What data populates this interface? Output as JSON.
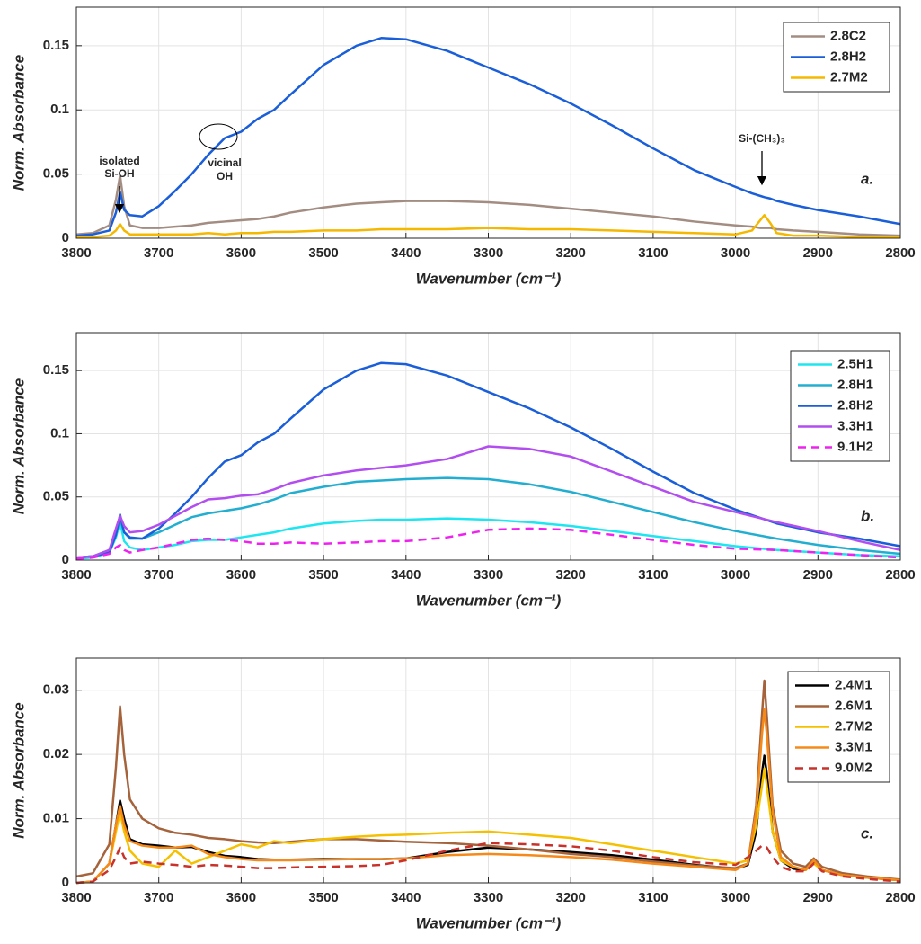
{
  "chart_data": [
    {
      "type": "line",
      "xlabel": "Wavenumber (cm⁻¹)",
      "ylabel": "Norm. Absorbance",
      "x": [
        3800,
        3780,
        3760,
        3752,
        3747,
        3742,
        3735,
        3720,
        3700,
        3680,
        3660,
        3640,
        3620,
        3600,
        3580,
        3560,
        3540,
        3500,
        3460,
        3430,
        3400,
        3350,
        3300,
        3250,
        3200,
        3150,
        3100,
        3050,
        3000,
        2980,
        2970,
        2965,
        2958,
        2950,
        2930,
        2900,
        2850,
        2800
      ],
      "xlim": [
        3800,
        2800
      ],
      "xticks": [
        3800,
        3700,
        3600,
        3500,
        3400,
        3300,
        3200,
        3100,
        3000,
        2900,
        2800
      ],
      "ylim": [
        0,
        0.18
      ],
      "yticks": [
        0,
        0.05,
        0.1,
        0.15
      ],
      "grid": true,
      "legend": "upper right",
      "series": [
        {
          "name": "2.8C2",
          "color": "#a38d83",
          "values": [
            0.003,
            0.004,
            0.01,
            0.03,
            0.049,
            0.025,
            0.01,
            0.008,
            0.008,
            0.009,
            0.01,
            0.012,
            0.013,
            0.014,
            0.015,
            0.017,
            0.02,
            0.024,
            0.027,
            0.028,
            0.029,
            0.029,
            0.028,
            0.026,
            0.023,
            0.02,
            0.017,
            0.013,
            0.01,
            0.009,
            0.008,
            0.008,
            0.008,
            0.007,
            0.006,
            0.005,
            0.003,
            0.002
          ]
        },
        {
          "name": "2.8H2",
          "color": "#1a5fd9",
          "values": [
            0.002,
            0.003,
            0.006,
            0.02,
            0.036,
            0.022,
            0.018,
            0.017,
            0.025,
            0.037,
            0.05,
            0.065,
            0.078,
            0.083,
            0.093,
            0.1,
            0.112,
            0.135,
            0.15,
            0.156,
            0.155,
            0.146,
            0.133,
            0.12,
            0.105,
            0.088,
            0.07,
            0.053,
            0.04,
            0.035,
            0.033,
            0.032,
            0.031,
            0.029,
            0.026,
            0.022,
            0.017,
            0.011
          ]
        },
        {
          "name": "2.7M2",
          "color": "#f5b800",
          "values": [
            0.001,
            0.001,
            0.002,
            0.006,
            0.011,
            0.006,
            0.003,
            0.003,
            0.003,
            0.003,
            0.003,
            0.004,
            0.003,
            0.004,
            0.004,
            0.005,
            0.005,
            0.006,
            0.006,
            0.007,
            0.007,
            0.007,
            0.008,
            0.007,
            0.007,
            0.006,
            0.005,
            0.004,
            0.003,
            0.006,
            0.014,
            0.018,
            0.012,
            0.004,
            0.002,
            0.002,
            0.001,
            0.001
          ]
        }
      ],
      "annotations": [
        "isolated",
        "Si-OH",
        "vicinal",
        "OH",
        "Si-(CH₃)₃",
        "a."
      ]
    },
    {
      "type": "line",
      "xlabel": "Wavenumber (cm⁻¹)",
      "ylabel": "Norm. Absorbance",
      "x": [
        3800,
        3780,
        3760,
        3752,
        3747,
        3742,
        3735,
        3720,
        3700,
        3680,
        3660,
        3640,
        3620,
        3600,
        3580,
        3560,
        3540,
        3500,
        3460,
        3430,
        3400,
        3350,
        3300,
        3250,
        3200,
        3150,
        3100,
        3050,
        3000,
        2950,
        2900,
        2850,
        2800
      ],
      "xlim": [
        3800,
        2800
      ],
      "xticks": [
        3800,
        3700,
        3600,
        3500,
        3400,
        3300,
        3200,
        3100,
        3000,
        2900,
        2800
      ],
      "ylim": [
        0,
        0.18
      ],
      "yticks": [
        0,
        0.05,
        0.1,
        0.15
      ],
      "grid": true,
      "legend": "upper right",
      "series": [
        {
          "name": "2.5H1",
          "color": "#1ee6f0",
          "values": [
            0.001,
            0.002,
            0.006,
            0.018,
            0.03,
            0.015,
            0.01,
            0.008,
            0.01,
            0.012,
            0.015,
            0.016,
            0.016,
            0.018,
            0.02,
            0.022,
            0.025,
            0.029,
            0.031,
            0.032,
            0.032,
            0.033,
            0.032,
            0.03,
            0.027,
            0.023,
            0.019,
            0.015,
            0.011,
            0.008,
            0.006,
            0.004,
            0.003
          ]
        },
        {
          "name": "2.8H1",
          "color": "#22aed0",
          "values": [
            0.002,
            0.003,
            0.008,
            0.02,
            0.032,
            0.022,
            0.017,
            0.017,
            0.022,
            0.028,
            0.034,
            0.037,
            0.039,
            0.041,
            0.044,
            0.048,
            0.053,
            0.058,
            0.062,
            0.063,
            0.064,
            0.065,
            0.064,
            0.06,
            0.054,
            0.046,
            0.038,
            0.03,
            0.023,
            0.017,
            0.012,
            0.008,
            0.005
          ]
        },
        {
          "name": "2.8H2",
          "color": "#1a5fd9",
          "values": [
            0.002,
            0.003,
            0.006,
            0.02,
            0.036,
            0.022,
            0.018,
            0.017,
            0.025,
            0.037,
            0.05,
            0.065,
            0.078,
            0.083,
            0.093,
            0.1,
            0.112,
            0.135,
            0.15,
            0.156,
            0.155,
            0.146,
            0.133,
            0.12,
            0.105,
            0.088,
            0.07,
            0.053,
            0.04,
            0.029,
            0.022,
            0.017,
            0.011
          ]
        },
        {
          "name": "3.3H1",
          "color": "#b24ef0",
          "values": [
            0.002,
            0.003,
            0.008,
            0.025,
            0.035,
            0.027,
            0.022,
            0.023,
            0.028,
            0.035,
            0.042,
            0.048,
            0.049,
            0.051,
            0.052,
            0.056,
            0.061,
            0.067,
            0.071,
            0.073,
            0.075,
            0.08,
            0.09,
            0.088,
            0.082,
            0.07,
            0.058,
            0.046,
            0.038,
            0.03,
            0.023,
            0.015,
            0.008
          ]
        },
        {
          "name": "9.1H2",
          "color": "#ee22ee",
          "linestyle": "dashed",
          "values": [
            0.001,
            0.002,
            0.005,
            0.01,
            0.012,
            0.008,
            0.006,
            0.008,
            0.01,
            0.013,
            0.016,
            0.017,
            0.016,
            0.015,
            0.013,
            0.013,
            0.014,
            0.013,
            0.014,
            0.015,
            0.015,
            0.018,
            0.024,
            0.025,
            0.024,
            0.02,
            0.016,
            0.012,
            0.009,
            0.008,
            0.006,
            0.004,
            0.002
          ]
        }
      ],
      "annotations": [
        "b."
      ]
    },
    {
      "type": "line",
      "xlabel": "Wavenumber (cm⁻¹)",
      "ylabel": "Norm. Absorbance",
      "x": [
        3800,
        3780,
        3760,
        3752,
        3747,
        3742,
        3735,
        3720,
        3700,
        3680,
        3660,
        3640,
        3620,
        3600,
        3580,
        3560,
        3540,
        3500,
        3460,
        3430,
        3400,
        3350,
        3300,
        3250,
        3200,
        3150,
        3100,
        3050,
        3000,
        2985,
        2975,
        2968,
        2965,
        2962,
        2955,
        2945,
        2930,
        2915,
        2905,
        2895,
        2870,
        2840,
        2800
      ],
      "xlim": [
        3800,
        2800
      ],
      "xticks": [
        3800,
        3700,
        3600,
        3500,
        3400,
        3300,
        3200,
        3100,
        3000,
        2900,
        2800
      ],
      "ylim": [
        0,
        0.035
      ],
      "yticks": [
        0,
        0.01,
        0.02,
        0.03
      ],
      "grid": true,
      "legend": "upper right",
      "series": [
        {
          "name": "2.4M1",
          "color": "#000000",
          "values": [
            0,
            0.0002,
            0.003,
            0.009,
            0.0128,
            0.01,
            0.0068,
            0.006,
            0.0058,
            0.0055,
            0.0056,
            0.0048,
            0.0042,
            0.004,
            0.0037,
            0.0036,
            0.0036,
            0.0037,
            0.0037,
            0.0037,
            0.0038,
            0.0048,
            0.0055,
            0.0052,
            0.0048,
            0.0043,
            0.0036,
            0.0028,
            0.0022,
            0.0028,
            0.008,
            0.017,
            0.0198,
            0.017,
            0.008,
            0.0035,
            0.0022,
            0.002,
            0.0033,
            0.002,
            0.0012,
            0.0008,
            0.0004
          ]
        },
        {
          "name": "2.6M1",
          "color": "#a5633c",
          "values": [
            0.001,
            0.0015,
            0.006,
            0.018,
            0.0275,
            0.02,
            0.013,
            0.01,
            0.0085,
            0.0078,
            0.0075,
            0.007,
            0.0068,
            0.0065,
            0.0063,
            0.0062,
            0.0064,
            0.0068,
            0.0068,
            0.0066,
            0.0064,
            0.0062,
            0.0058,
            0.0052,
            0.0045,
            0.004,
            0.0033,
            0.0027,
            0.0023,
            0.003,
            0.012,
            0.026,
            0.0315,
            0.026,
            0.012,
            0.005,
            0.003,
            0.0025,
            0.0038,
            0.0025,
            0.0015,
            0.001,
            0.0005
          ]
        },
        {
          "name": "2.7M2",
          "color": "#f5c000",
          "values": [
            0,
            0.0002,
            0.003,
            0.008,
            0.011,
            0.008,
            0.005,
            0.003,
            0.0025,
            0.005,
            0.003,
            0.004,
            0.005,
            0.006,
            0.0055,
            0.0065,
            0.0062,
            0.0068,
            0.0072,
            0.0074,
            0.0075,
            0.0078,
            0.008,
            0.0075,
            0.007,
            0.006,
            0.005,
            0.004,
            0.003,
            0.0035,
            0.009,
            0.015,
            0.0178,
            0.015,
            0.008,
            0.0035,
            0.0025,
            0.002,
            0.003,
            0.002,
            0.0012,
            0.0008,
            0.0004
          ]
        },
        {
          "name": "3.3M1",
          "color": "#f58a1a",
          "values": [
            0,
            0.0002,
            0.003,
            0.009,
            0.012,
            0.009,
            0.0065,
            0.0058,
            0.0055,
            0.0055,
            0.0058,
            0.0045,
            0.004,
            0.0037,
            0.0035,
            0.0035,
            0.0035,
            0.0036,
            0.0037,
            0.0037,
            0.0038,
            0.0043,
            0.0045,
            0.0043,
            0.004,
            0.0036,
            0.003,
            0.0025,
            0.002,
            0.003,
            0.011,
            0.023,
            0.027,
            0.023,
            0.011,
            0.004,
            0.0025,
            0.002,
            0.0035,
            0.002,
            0.0012,
            0.0008,
            0.0004
          ]
        },
        {
          "name": "9.0M2",
          "color": "#c8322a",
          "linestyle": "dashed",
          "values": [
            0,
            0.0002,
            0.002,
            0.004,
            0.0055,
            0.004,
            0.003,
            0.0033,
            0.003,
            0.0028,
            0.0025,
            0.0028,
            0.0027,
            0.0025,
            0.0023,
            0.0023,
            0.0024,
            0.0025,
            0.0026,
            0.0028,
            0.0035,
            0.005,
            0.0062,
            0.006,
            0.0057,
            0.005,
            0.004,
            0.0032,
            0.0028,
            0.004,
            0.005,
            0.0058,
            0.0058,
            0.0055,
            0.004,
            0.0025,
            0.0018,
            0.0018,
            0.003,
            0.0018,
            0.001,
            0.0006,
            0.0002
          ]
        }
      ],
      "annotations": [
        "c."
      ]
    }
  ]
}
